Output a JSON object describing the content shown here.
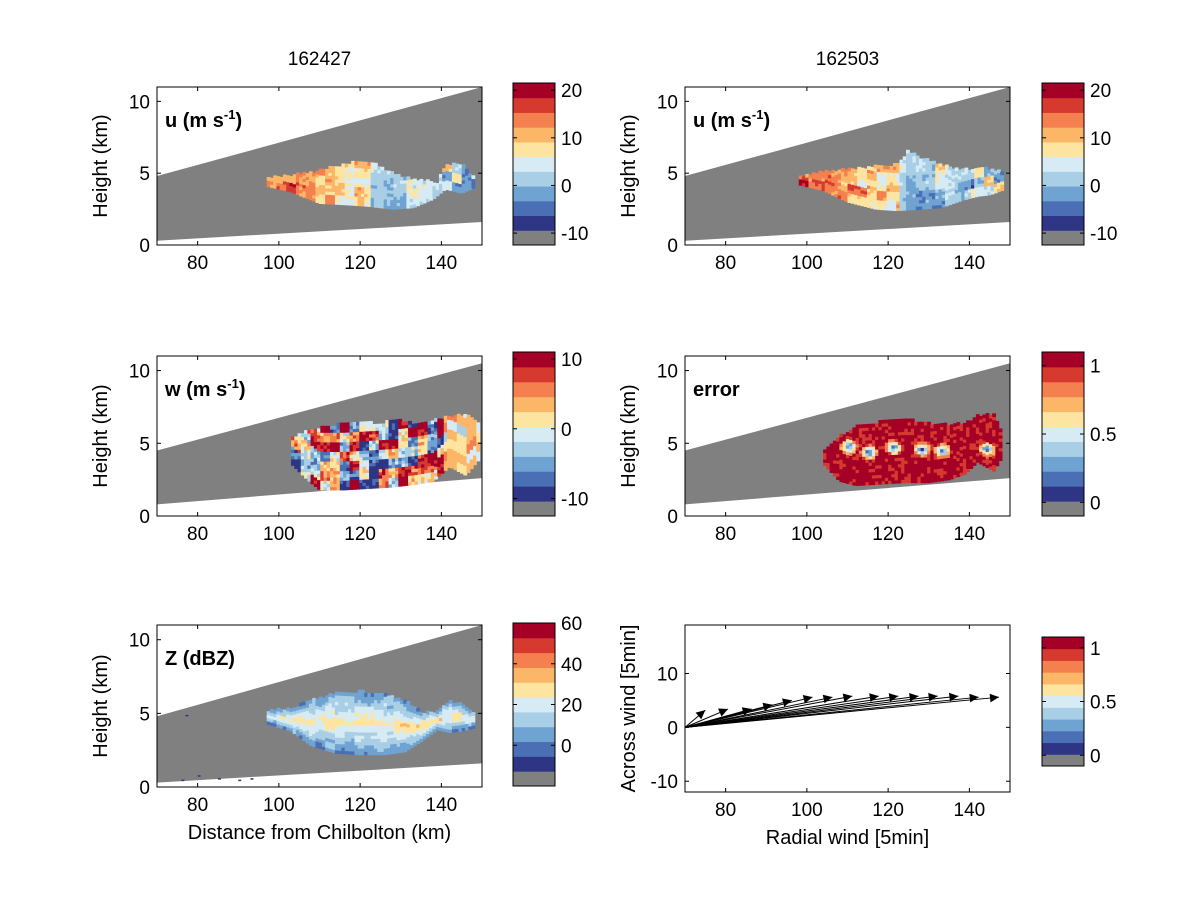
{
  "colormap": {
    "nan_color": "#808080",
    "colors": [
      "#2d3584",
      "#4a6fb4",
      "#6fa3d2",
      "#a8cfe5",
      "#d6ebf3",
      "#fde5a1",
      "#fcb667",
      "#f3804e",
      "#d63a2e",
      "#a50026"
    ]
  },
  "chart_data": [
    {
      "id": "u-left",
      "type": "heatmap",
      "title": "162427",
      "label": "u (m s",
      "label_sup": "-1",
      "label_tail": ")",
      "ylabel": "Height (km)",
      "xlabel": "",
      "xlim": [
        70,
        150
      ],
      "ylim": [
        0,
        11
      ],
      "xticks": [
        "80",
        "100",
        "120",
        "140"
      ],
      "yticks": [
        "0",
        "5",
        "10"
      ],
      "colorbar": {
        "ticks": [
          {
            "v": 20,
            "t": "20"
          },
          {
            "v": 10,
            "t": "10"
          },
          {
            "v": 0,
            "t": "0"
          },
          {
            "v": -10,
            "t": "-10"
          }
        ],
        "range": [
          -12.5,
          21.5
        ]
      },
      "beam": {
        "bottom": [
          0.3,
          1.6
        ],
        "top": [
          4.8,
          11.0
        ]
      },
      "field": "u",
      "echo": {
        "x": [
          97,
          148
        ],
        "upper": [
          [
            97,
            4.6
          ],
          [
            103,
            4.8
          ],
          [
            110,
            5.1
          ],
          [
            117,
            5.6
          ],
          [
            122,
            5.8
          ],
          [
            126,
            5.2
          ],
          [
            131,
            4.6
          ],
          [
            135,
            4.4
          ],
          [
            139,
            4.3
          ],
          [
            141,
            5.5
          ],
          [
            145,
            5.6
          ],
          [
            148,
            4.6
          ]
        ],
        "lower": [
          [
            97,
            4.1
          ],
          [
            103,
            3.7
          ],
          [
            110,
            2.9
          ],
          [
            117,
            2.8
          ],
          [
            122,
            2.7
          ],
          [
            128,
            2.5
          ],
          [
            133,
            2.6
          ],
          [
            138,
            3.2
          ],
          [
            141,
            3.9
          ],
          [
            145,
            3.6
          ],
          [
            148,
            4.0
          ]
        ]
      }
    },
    {
      "id": "u-right",
      "type": "heatmap",
      "title": "162503",
      "label": "u (m s",
      "label_sup": "-1",
      "label_tail": ")",
      "ylabel": "Height (km)",
      "xlabel": "",
      "xlim": [
        70,
        150
      ],
      "ylim": [
        0,
        11
      ],
      "xticks": [
        "80",
        "100",
        "120",
        "140"
      ],
      "yticks": [
        "0",
        "5",
        "10"
      ],
      "colorbar": {
        "ticks": [
          {
            "v": 20,
            "t": "20"
          },
          {
            "v": 10,
            "t": "10"
          },
          {
            "v": 0,
            "t": "0"
          },
          {
            "v": -10,
            "t": "-10"
          }
        ],
        "range": [
          -12.5,
          21.5
        ]
      },
      "beam": {
        "bottom": [
          0.3,
          1.6
        ],
        "top": [
          4.8,
          11.0
        ]
      },
      "field": "u2",
      "echo": {
        "x": [
          98,
          148
        ],
        "upper": [
          [
            98,
            4.7
          ],
          [
            104,
            5.0
          ],
          [
            110,
            5.2
          ],
          [
            117,
            5.4
          ],
          [
            122,
            5.5
          ],
          [
            125,
            6.5
          ],
          [
            128,
            6.0
          ],
          [
            132,
            5.6
          ],
          [
            136,
            5.3
          ],
          [
            140,
            5.2
          ],
          [
            144,
            5.3
          ],
          [
            148,
            5.0
          ]
        ],
        "lower": [
          [
            98,
            4.2
          ],
          [
            104,
            3.8
          ],
          [
            110,
            3.0
          ],
          [
            117,
            2.5
          ],
          [
            122,
            2.4
          ],
          [
            128,
            2.5
          ],
          [
            133,
            2.6
          ],
          [
            138,
            3.1
          ],
          [
            142,
            3.4
          ],
          [
            145,
            3.5
          ],
          [
            148,
            3.8
          ]
        ]
      }
    },
    {
      "id": "w-left",
      "type": "heatmap",
      "title": "",
      "label": "w (m s",
      "label_sup": "-1",
      "label_tail": ")",
      "ylabel": "Height (km)",
      "xlabel": "",
      "xlim": [
        70,
        150
      ],
      "ylim": [
        0,
        11
      ],
      "xticks": [
        "80",
        "100",
        "120",
        "140"
      ],
      "yticks": [
        "0",
        "5",
        "10"
      ],
      "colorbar": {
        "ticks": [
          {
            "v": 10,
            "t": "10"
          },
          {
            "v": 0,
            "t": "0"
          },
          {
            "v": -10,
            "t": "-10"
          }
        ],
        "range": [
          -12.5,
          11
        ]
      },
      "beam": {
        "bottom": [
          0.8,
          2.6
        ],
        "top": [
          4.5,
          10.5
        ]
      },
      "field": "w",
      "echo": {
        "x": [
          103,
          149
        ],
        "upper": [
          [
            103,
            5.2
          ],
          [
            107,
            5.9
          ],
          [
            112,
            6.1
          ],
          [
            118,
            6.4
          ],
          [
            124,
            6.3
          ],
          [
            130,
            6.5
          ],
          [
            134,
            6.2
          ],
          [
            138,
            6.5
          ],
          [
            142,
            6.8
          ],
          [
            146,
            6.9
          ],
          [
            149,
            6.4
          ]
        ],
        "lower": [
          [
            103,
            3.6
          ],
          [
            107,
            2.5
          ],
          [
            110,
            1.8
          ],
          [
            116,
            1.8
          ],
          [
            122,
            1.9
          ],
          [
            128,
            2.0
          ],
          [
            134,
            2.2
          ],
          [
            138,
            2.4
          ],
          [
            142,
            3.4
          ],
          [
            146,
            2.8
          ],
          [
            149,
            3.8
          ]
        ]
      }
    },
    {
      "id": "error-right",
      "type": "heatmap",
      "title": "",
      "label": "error",
      "label_sup": "",
      "label_tail": "",
      "ylabel": "Height (km)",
      "xlabel": "",
      "xlim": [
        70,
        150
      ],
      "ylim": [
        0,
        11
      ],
      "xticks": [
        "80",
        "100",
        "120",
        "140"
      ],
      "yticks": [
        "0",
        "5",
        "10"
      ],
      "colorbar": {
        "ticks": [
          {
            "v": 1,
            "t": "1"
          },
          {
            "v": 0.5,
            "t": "0.5"
          },
          {
            "v": 0,
            "t": "0"
          }
        ],
        "range": [
          -0.1,
          1.1
        ]
      },
      "beam": {
        "bottom": [
          0.8,
          2.6
        ],
        "top": [
          4.5,
          10.5
        ]
      },
      "field": "err",
      "echo": {
        "x": [
          104,
          148
        ],
        "upper": [
          [
            104,
            4.4
          ],
          [
            108,
            5.4
          ],
          [
            112,
            6.1
          ],
          [
            118,
            6.4
          ],
          [
            124,
            6.6
          ],
          [
            130,
            6.3
          ],
          [
            135,
            6.2
          ],
          [
            139,
            6.3
          ],
          [
            142,
            6.8
          ],
          [
            146,
            6.9
          ],
          [
            148,
            5.8
          ]
        ],
        "lower": [
          [
            104,
            3.6
          ],
          [
            108,
            2.4
          ],
          [
            112,
            2.1
          ],
          [
            118,
            2.2
          ],
          [
            124,
            2.3
          ],
          [
            130,
            2.3
          ],
          [
            135,
            2.5
          ],
          [
            139,
            2.9
          ],
          [
            142,
            3.7
          ],
          [
            146,
            3.1
          ],
          [
            148,
            4.0
          ]
        ]
      }
    },
    {
      "id": "z-left",
      "type": "heatmap",
      "title": "",
      "label": "Z (dBZ)",
      "label_sup": "",
      "label_tail": "",
      "ylabel": "Height (km)",
      "xlabel": "Distance from Chilbolton (km)",
      "xlim": [
        70,
        150
      ],
      "ylim": [
        0,
        11
      ],
      "xticks": [
        "80",
        "100",
        "120",
        "140"
      ],
      "yticks": [
        "0",
        "5",
        "10"
      ],
      "colorbar": {
        "ticks": [
          {
            "v": 60,
            "t": "60"
          },
          {
            "v": 40,
            "t": "40"
          },
          {
            "v": 20,
            "t": "20"
          },
          {
            "v": 0,
            "t": "0"
          }
        ],
        "range": [
          -20,
          60
        ]
      },
      "beam": {
        "bottom": [
          0.3,
          1.6
        ],
        "top": [
          4.8,
          11.0
        ]
      },
      "field": "z",
      "echo": {
        "x": [
          97,
          148
        ],
        "upper": [
          [
            97,
            5.1
          ],
          [
            103,
            5.3
          ],
          [
            108,
            5.8
          ],
          [
            114,
            6.3
          ],
          [
            120,
            6.4
          ],
          [
            126,
            6.2
          ],
          [
            131,
            5.8
          ],
          [
            135,
            5.0
          ],
          [
            139,
            5.0
          ],
          [
            142,
            5.7
          ],
          [
            145,
            5.6
          ],
          [
            148,
            5.0
          ]
        ],
        "lower": [
          [
            97,
            4.3
          ],
          [
            103,
            3.8
          ],
          [
            108,
            2.8
          ],
          [
            114,
            2.3
          ],
          [
            120,
            2.2
          ],
          [
            126,
            2.2
          ],
          [
            131,
            2.4
          ],
          [
            135,
            3.1
          ],
          [
            139,
            3.9
          ],
          [
            142,
            3.7
          ],
          [
            145,
            3.8
          ],
          [
            148,
            4.0
          ]
        ]
      }
    },
    {
      "id": "wind-right",
      "type": "scatter",
      "title": "",
      "ylabel": "Across wind [5min]",
      "xlabel": "Radial wind [5min]",
      "xlim": [
        70,
        150
      ],
      "ylim": [
        -12,
        19
      ],
      "xticks": [
        "80",
        "100",
        "120",
        "140"
      ],
      "yticks": [
        "-10",
        "0",
        "10"
      ],
      "colorbar": {
        "ticks": [
          {
            "v": 1,
            "t": "1"
          },
          {
            "v": 0.5,
            "t": "0.5"
          },
          {
            "v": 0,
            "t": "0"
          }
        ],
        "range": [
          -0.1,
          1.1
        ]
      },
      "origin": [
        70,
        0
      ],
      "arrows": {
        "x": [
          75,
          80.6,
          86.4,
          91.5,
          96.3,
          101.4,
          106.3,
          111.2,
          117.7,
          122.5,
          127.5,
          132.2,
          137.3,
          142.3,
          147.3
        ],
        "y": [
          3.2,
          3.4,
          3.4,
          4.2,
          5.0,
          5.6,
          5.6,
          5.8,
          5.8,
          5.8,
          5.8,
          5.8,
          5.8,
          5.6,
          5.6
        ]
      }
    }
  ]
}
